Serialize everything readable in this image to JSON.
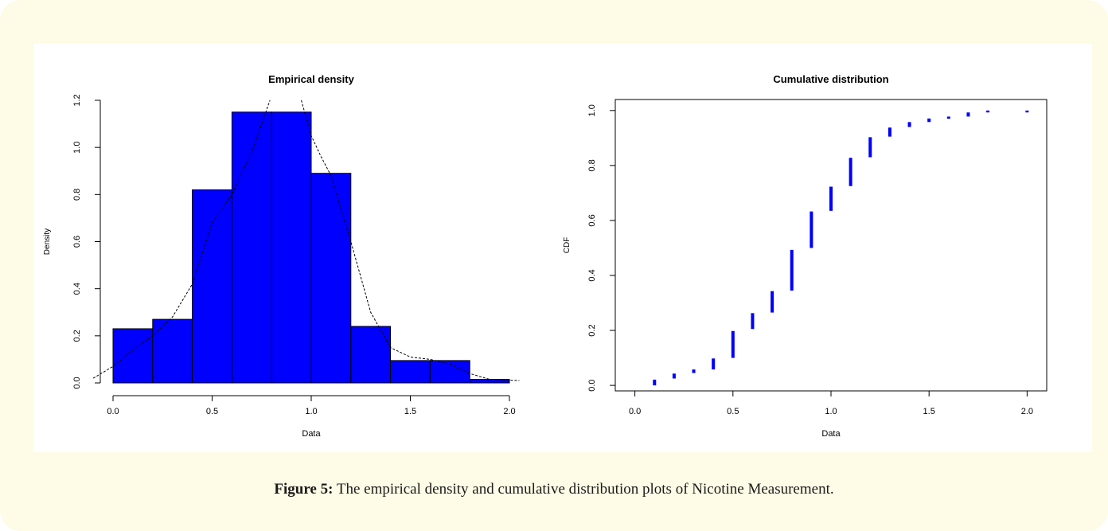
{
  "caption": {
    "label": "Figure 5:",
    "text": " The empirical density and cumulative distribution plots of Nicotine Measurement."
  },
  "colors": {
    "bar": "#0000ff",
    "point": "#0000ff",
    "line": "#000000",
    "panel_bg": "#fefbe6"
  },
  "chart_data": [
    {
      "type": "bar",
      "title": "Empirical density",
      "xlabel": "Data",
      "ylabel": "Density",
      "xlim": [
        0.0,
        2.0
      ],
      "ylim": [
        0.0,
        1.2
      ],
      "xticks": [
        "0.0",
        "0.5",
        "1.0",
        "1.5",
        "2.0"
      ],
      "yticks": [
        "0.0",
        "0.2",
        "0.4",
        "0.6",
        "0.8",
        "1.0",
        "1.2"
      ],
      "bin_edges": [
        0.0,
        0.2,
        0.4,
        0.6,
        0.8,
        1.0,
        1.2,
        1.4,
        1.6,
        1.8,
        2.0
      ],
      "values": [
        0.23,
        0.27,
        0.82,
        1.15,
        1.15,
        0.89,
        0.24,
        0.095,
        0.095,
        0.015
      ],
      "density_curve": {
        "x": [
          -0.1,
          0.0,
          0.1,
          0.2,
          0.3,
          0.4,
          0.5,
          0.6,
          0.7,
          0.75,
          0.8,
          0.85,
          0.9,
          0.95,
          1.0,
          1.05,
          1.1,
          1.2,
          1.3,
          1.4,
          1.5,
          1.6,
          1.7,
          1.8,
          1.9,
          2.05
        ],
        "y": [
          0.02,
          0.07,
          0.14,
          0.2,
          0.28,
          0.42,
          0.68,
          0.8,
          0.98,
          1.1,
          1.22,
          1.3,
          1.28,
          1.2,
          1.05,
          0.96,
          0.88,
          0.6,
          0.3,
          0.15,
          0.11,
          0.1,
          0.08,
          0.04,
          0.015,
          0.01
        ]
      },
      "grid": false
    },
    {
      "type": "scatter",
      "title": "Cumulative distribution",
      "xlabel": "Data",
      "ylabel": "CDF",
      "xlim": [
        -0.1,
        2.1
      ],
      "ylim": [
        -0.02,
        1.04
      ],
      "xticks": [
        "0.0",
        "0.5",
        "1.0",
        "1.5",
        "2.0"
      ],
      "yticks": [
        "0.0",
        "0.2",
        "0.4",
        "0.6",
        "0.8",
        "1.0"
      ],
      "steps": [
        {
          "x": 0.1,
          "y_from": 0.0,
          "y_to": 0.018
        },
        {
          "x": 0.2,
          "y_from": 0.025,
          "y_to": 0.04
        },
        {
          "x": 0.3,
          "y_from": 0.045,
          "y_to": 0.055
        },
        {
          "x": 0.4,
          "y_from": 0.058,
          "y_to": 0.095
        },
        {
          "x": 0.5,
          "y_from": 0.1,
          "y_to": 0.195
        },
        {
          "x": 0.6,
          "y_from": 0.205,
          "y_to": 0.26
        },
        {
          "x": 0.7,
          "y_from": 0.265,
          "y_to": 0.34
        },
        {
          "x": 0.8,
          "y_from": 0.345,
          "y_to": 0.49
        },
        {
          "x": 0.9,
          "y_from": 0.5,
          "y_to": 0.63
        },
        {
          "x": 1.0,
          "y_from": 0.635,
          "y_to": 0.72
        },
        {
          "x": 1.1,
          "y_from": 0.725,
          "y_to": 0.825
        },
        {
          "x": 1.2,
          "y_from": 0.83,
          "y_to": 0.9
        },
        {
          "x": 1.3,
          "y_from": 0.905,
          "y_to": 0.935
        },
        {
          "x": 1.4,
          "y_from": 0.94,
          "y_to": 0.955
        },
        {
          "x": 1.5,
          "y_from": 0.958,
          "y_to": 0.968
        },
        {
          "x": 1.6,
          "y_from": 0.97,
          "y_to": 0.975
        },
        {
          "x": 1.7,
          "y_from": 0.978,
          "y_to": 0.99
        },
        {
          "x": 1.8,
          "y_from": 0.993,
          "y_to": 0.997
        },
        {
          "x": 2.0,
          "y_from": 0.993,
          "y_to": 0.997
        }
      ],
      "grid": false
    }
  ]
}
